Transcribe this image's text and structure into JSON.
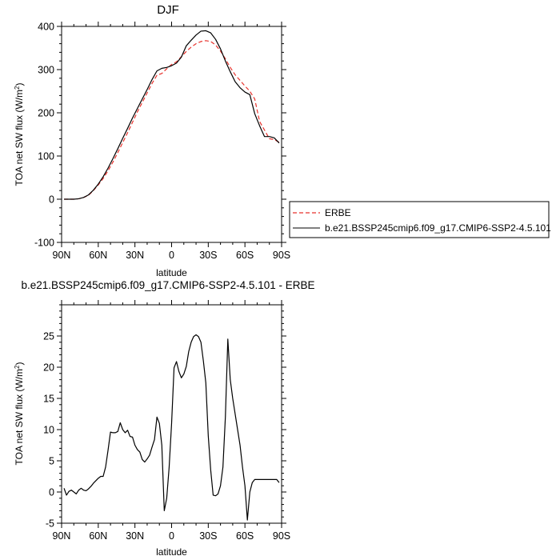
{
  "chart_data": [
    {
      "type": "line",
      "title": "DJF",
      "xlabel": "latitude",
      "ylabel_main": "TOA net SW flux (W/m",
      "ylabel_sup": "2",
      "ylabel_end": ")",
      "xlim": [
        90,
        -90
      ],
      "ylim": [
        -100,
        400
      ],
      "x_ticks": [
        90,
        60,
        30,
        0,
        -30,
        -60,
        -90
      ],
      "x_tick_labels": [
        "90N",
        "60N",
        "30N",
        "0",
        "30S",
        "60S",
        "90S"
      ],
      "y_ticks": [
        -100,
        0,
        100,
        200,
        300,
        400
      ],
      "y_tick_labels": [
        "-100",
        "0",
        "100",
        "200",
        "300",
        "400"
      ],
      "legend": "right",
      "series": [
        {
          "name": "ERBE",
          "color": "#e8322c",
          "dash": "dashed",
          "x": [
            88,
            84,
            80,
            76,
            72,
            68,
            64,
            60,
            56,
            52,
            48,
            44,
            40,
            36,
            32,
            28,
            24,
            20,
            16,
            12,
            8,
            4,
            0,
            -4,
            -8,
            -12,
            -16,
            -20,
            -24,
            -28,
            -32,
            -36,
            -40,
            -44,
            -48,
            -52,
            -56,
            -60,
            -64,
            -68,
            -72,
            -76,
            -80,
            -84,
            -88
          ],
          "values": [
            0,
            0,
            0,
            1,
            4,
            9,
            20,
            33,
            48,
            66,
            86,
            108,
            131,
            154,
            178,
            202,
            224,
            246,
            268,
            287,
            291,
            302,
            312,
            318,
            330,
            342,
            352,
            360,
            365,
            367,
            365,
            357,
            343,
            325,
            305,
            288,
            275,
            262,
            250,
            232,
            180,
            160,
            140,
            138,
            132
          ]
        },
        {
          "name": "b.e21.BSSP245cmip6.f09_g17.CMIP6-SSP2-4.5.101",
          "color": "#000000",
          "dash": "solid",
          "x": [
            88,
            84,
            80,
            76,
            72,
            68,
            64,
            60,
            56,
            52,
            48,
            44,
            40,
            36,
            32,
            28,
            24,
            20,
            16,
            12,
            8,
            4,
            0,
            -4,
            -8,
            -12,
            -16,
            -20,
            -24,
            -28,
            -32,
            -36,
            -40,
            -44,
            -48,
            -52,
            -56,
            -60,
            -64,
            -68,
            -72,
            -76,
            -80,
            -84,
            -88
          ],
          "values": [
            0,
            0,
            0,
            1,
            4,
            10,
            21,
            35,
            52,
            72,
            94,
            117,
            141,
            164,
            188,
            210,
            232,
            254,
            277,
            297,
            303,
            305,
            309,
            315,
            329,
            355,
            368,
            380,
            389,
            390,
            385,
            370,
            348,
            320,
            295,
            272,
            258,
            248,
            242,
            198,
            170,
            145,
            145,
            142,
            130
          ]
        }
      ]
    },
    {
      "type": "line",
      "title": "b.e21.BSSP245cmip6.f09_g17.CMIP6-SSP2-4.5.101 - ERBE",
      "xlabel": "latitude",
      "ylabel_main": "TOA net SW flux (W/m",
      "ylabel_sup": "2",
      "ylabel_end": ")",
      "xlim": [
        90,
        -90
      ],
      "ylim": [
        -5,
        30
      ],
      "x_ticks": [
        90,
        60,
        30,
        0,
        -30,
        -60,
        -90
      ],
      "x_tick_labels": [
        "90N",
        "60N",
        "30N",
        "0",
        "30S",
        "60S",
        "90S"
      ],
      "y_ticks": [
        -5,
        0,
        5,
        10,
        15,
        20,
        25
      ],
      "y_tick_labels": [
        "-5",
        "0",
        "5",
        "10",
        "15",
        "20",
        "25"
      ],
      "series": [
        {
          "color": "#000000",
          "dash": "solid",
          "x": [
            88,
            86,
            84,
            82,
            80,
            78,
            76,
            74,
            72,
            70,
            68,
            66,
            64,
            62,
            60,
            58,
            56,
            54,
            52,
            50,
            48,
            46,
            44,
            42,
            40,
            38,
            36,
            34,
            32,
            30,
            28,
            26,
            24,
            22,
            20,
            18,
            16,
            14,
            12,
            10,
            8,
            6,
            4,
            2,
            0,
            -2,
            -4,
            -6,
            -8,
            -10,
            -12,
            -14,
            -16,
            -18,
            -20,
            -22,
            -24,
            -26,
            -28,
            -30,
            -32,
            -34,
            -36,
            -38,
            -40,
            -42,
            -44,
            -46,
            -48,
            -50,
            -52,
            -54,
            -56,
            -58,
            -60,
            -62,
            -64,
            -66,
            -68,
            -70,
            -72,
            -74,
            -76,
            -78,
            -80,
            -82,
            -84,
            -86,
            -88
          ],
          "values": [
            0.6,
            -0.5,
            0.1,
            0.3,
            0.0,
            -0.3,
            0.3,
            0.6,
            0.3,
            0.2,
            0.5,
            0.9,
            1.4,
            1.8,
            2.2,
            2.5,
            2.5,
            4.0,
            6.7,
            9.6,
            9.5,
            9.5,
            9.7,
            11.1,
            10.0,
            9.5,
            9.9,
            8.9,
            8.8,
            7.5,
            6.8,
            6.4,
            5.2,
            4.8,
            5.3,
            5.9,
            7.2,
            8.4,
            12.0,
            11.0,
            7.5,
            -3.0,
            -1.0,
            4.0,
            11.0,
            19.9,
            20.9,
            19.3,
            18.3,
            18.9,
            20.1,
            22.5,
            24.0,
            24.9,
            25.2,
            24.9,
            24.0,
            21.0,
            17.5,
            9.0,
            3.5,
            -0.5,
            -0.6,
            -0.3,
            1.0,
            4.0,
            12.0,
            24.5,
            18.0,
            15.0,
            12.5,
            10.0,
            7.5,
            4.0,
            1.0,
            -4.5,
            0.0,
            1.5,
            2.0,
            2.0,
            2.0,
            2.0,
            2.0,
            2.0,
            2.0,
            2.0,
            2.0,
            2.0,
            1.5
          ]
        }
      ]
    }
  ]
}
